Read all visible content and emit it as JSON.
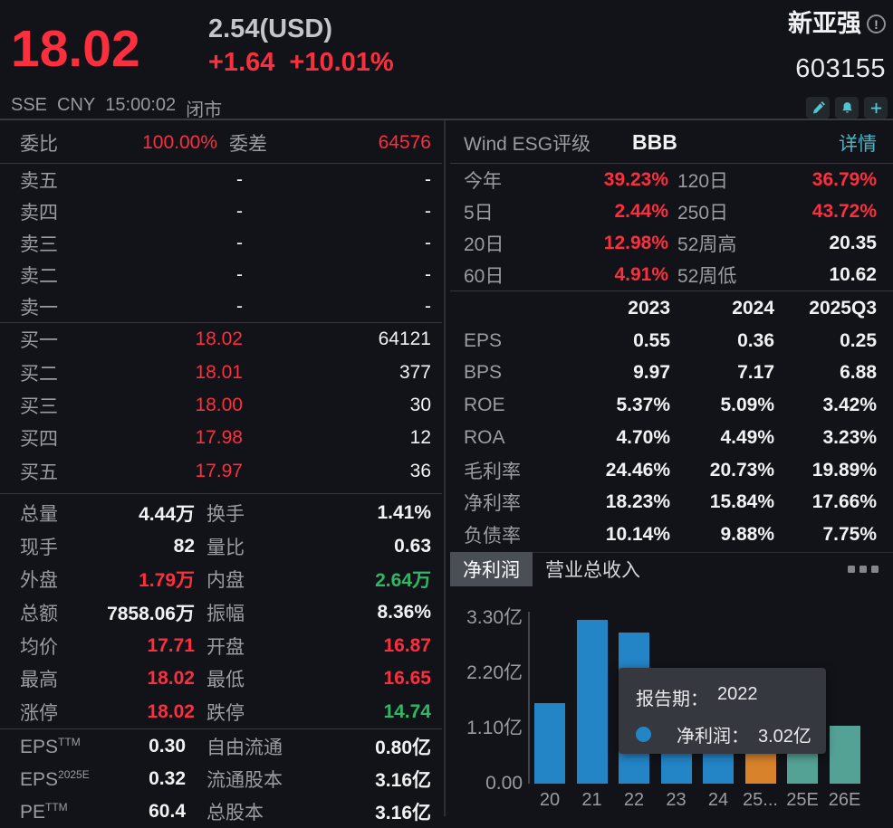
{
  "colors": {
    "bg": "#121318",
    "red": "#fb2f3e",
    "green": "#2fb765",
    "white": "#f2f2f4",
    "gray": "#9b9ca2",
    "cyan": "#4ec6d4",
    "link": "#4bb4c4",
    "blue_bar": "#2384c6",
    "orange_bar": "#d8822b",
    "teal_bar": "#54a296",
    "tooltip_bg": "#35383f"
  },
  "header": {
    "price": "18.02",
    "usd_price": "2.54(USD)",
    "change": "+1.64",
    "change_pct": "+10.01%",
    "name": "新亚强",
    "info_glyph": "!",
    "code": "603155",
    "exchange": "SSE",
    "currency": "CNY",
    "time": "15:00:02",
    "market_status": "闭市"
  },
  "order_book": {
    "summary": {
      "label1": "委比",
      "value1": "100.00%",
      "label2": "委差",
      "value2": "64576"
    },
    "asks": [
      {
        "label": "卖五",
        "price": "-",
        "volume": "-"
      },
      {
        "label": "卖四",
        "price": "-",
        "volume": "-"
      },
      {
        "label": "卖三",
        "price": "-",
        "volume": "-"
      },
      {
        "label": "卖二",
        "price": "-",
        "volume": "-"
      },
      {
        "label": "卖一",
        "price": "-",
        "volume": "-"
      }
    ],
    "bids": [
      {
        "label": "买一",
        "price": "18.02",
        "volume": "64121"
      },
      {
        "label": "买二",
        "price": "18.01",
        "volume": "377"
      },
      {
        "label": "买三",
        "price": "18.00",
        "volume": "30"
      },
      {
        "label": "买四",
        "price": "17.98",
        "volume": "12"
      },
      {
        "label": "买五",
        "price": "17.97",
        "volume": "36"
      }
    ]
  },
  "stats": {
    "rows": [
      {
        "label1": "总量",
        "value1": "4.44万",
        "v1c": "white",
        "label2": "换手",
        "value2": "1.41%",
        "v2c": "white"
      },
      {
        "label1": "现手",
        "value1": "82",
        "v1c": "white",
        "label2": "量比",
        "value2": "0.63",
        "v2c": "white"
      },
      {
        "label1": "外盘",
        "value1": "1.79万",
        "v1c": "red",
        "label2": "内盘",
        "value2": "2.64万",
        "v2c": "green"
      },
      {
        "label1": "总额",
        "value1": "7858.06万",
        "v1c": "white",
        "label2": "振幅",
        "value2": "8.36%",
        "v2c": "white"
      },
      {
        "label1": "均价",
        "value1": "17.71",
        "v1c": "red",
        "label2": "开盘",
        "value2": "16.87",
        "v2c": "red"
      },
      {
        "label1": "最高",
        "value1": "18.02",
        "v1c": "red",
        "label2": "最低",
        "value2": "16.65",
        "v2c": "red"
      },
      {
        "label1": "涨停",
        "value1": "18.02",
        "v1c": "red",
        "label2": "跌停",
        "value2": "14.74",
        "v2c": "green"
      }
    ]
  },
  "capital": {
    "rows": [
      {
        "label1": "EPS",
        "sup1": "TTM",
        "value1": "0.30",
        "label2": "自由流通",
        "value2": "0.80亿"
      },
      {
        "label1": "EPS",
        "sup1": "2025E",
        "value1": "0.32",
        "label2": "流通股本",
        "value2": "3.16亿"
      },
      {
        "label1": "PE",
        "sup1": "TTM",
        "value1": "60.4",
        "label2": "总股本",
        "value2": "3.16亿"
      }
    ]
  },
  "esg": {
    "label": "Wind ESG评级",
    "rating": "BBB",
    "detail_link": "详情"
  },
  "performance": {
    "rows": [
      {
        "label1": "今年",
        "value1": "39.23%",
        "v1c": "red",
        "label2": "120日",
        "value2": "36.79%",
        "v2c": "red"
      },
      {
        "label1": "5日",
        "value1": "2.44%",
        "v1c": "red",
        "label2": "250日",
        "value2": "43.72%",
        "v2c": "red"
      },
      {
        "label1": "20日",
        "value1": "12.98%",
        "v1c": "red",
        "label2": "52周高",
        "value2": "20.35",
        "v2c": "white"
      },
      {
        "label1": "60日",
        "value1": "4.91%",
        "v1c": "red",
        "label2": "52周低",
        "value2": "10.62",
        "v2c": "white"
      }
    ]
  },
  "financials": {
    "col_headers": [
      "2023",
      "2024",
      "2025Q3"
    ],
    "rows": [
      {
        "label": "EPS",
        "values": [
          "0.55",
          "0.36",
          "0.25"
        ]
      },
      {
        "label": "BPS",
        "values": [
          "9.97",
          "7.17",
          "6.88"
        ]
      },
      {
        "label": "ROE",
        "values": [
          "5.37%",
          "5.09%",
          "3.42%"
        ]
      },
      {
        "label": "ROA",
        "values": [
          "4.70%",
          "4.49%",
          "3.23%"
        ]
      },
      {
        "label": "毛利率",
        "values": [
          "24.46%",
          "20.73%",
          "19.89%"
        ]
      },
      {
        "label": "净利率",
        "values": [
          "18.23%",
          "15.84%",
          "17.66%"
        ]
      },
      {
        "label": "负债率",
        "values": [
          "10.14%",
          "9.88%",
          "7.75%"
        ]
      }
    ]
  },
  "chart_section": {
    "tabs": [
      {
        "label": "净利润",
        "selected": true
      },
      {
        "label": "营业总收入",
        "selected": false
      }
    ],
    "tooltip": {
      "line1_label": "报告期：",
      "line1_value": "2022",
      "line2_label": "净利润：",
      "line2_value": "3.02亿"
    }
  },
  "chart_data": {
    "type": "bar",
    "title": "净利润",
    "unit": "亿",
    "categories": [
      "20",
      "21",
      "22",
      "23",
      "24",
      "25...",
      "25E",
      "26E"
    ],
    "values": [
      1.6,
      3.26,
      3.02,
      1.74,
      1.14,
      0.79,
      1.01,
      1.15
    ],
    "bar_colors": [
      "blue",
      "blue",
      "blue",
      "blue",
      "blue",
      "orange",
      "teal",
      "teal"
    ],
    "ytick_labels": [
      "0.00",
      "1.10亿",
      "2.20亿",
      "3.30亿"
    ],
    "ylim": [
      0,
      3.3
    ],
    "grid": false,
    "legend": "none",
    "tooltip_point": {
      "category": "2022",
      "series": "净利润",
      "value": "3.02亿"
    }
  }
}
